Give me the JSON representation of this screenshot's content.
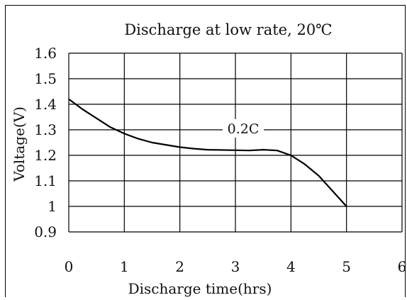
{
  "chart_data": {
    "type": "line",
    "title": "Discharge at low rate, 20℃",
    "xlabel": "Discharge time(hrs)",
    "ylabel": "Voltage(V)",
    "xlim": [
      0,
      6
    ],
    "ylim": [
      0.9,
      1.6
    ],
    "x_ticks": [
      "0",
      "1",
      "2",
      "3",
      "4",
      "5",
      "6"
    ],
    "y_ticks": [
      "1.6",
      "1.5",
      "1.4",
      "1.3",
      "1.2",
      "1.1",
      "1",
      "0.9"
    ],
    "grid": true,
    "annotations": [
      {
        "text": "0.2C"
      }
    ],
    "series": [
      {
        "x": [
          0,
          0.25,
          0.5,
          0.75,
          1.0,
          1.25,
          1.5,
          2.0,
          2.25,
          2.5,
          3.0,
          3.25,
          3.5,
          3.75,
          4.0,
          4.25,
          4.5,
          5.0
        ],
        "y": [
          1.42,
          1.38,
          1.345,
          1.31,
          1.285,
          1.265,
          1.25,
          1.232,
          1.226,
          1.222,
          1.22,
          1.219,
          1.222,
          1.219,
          1.2,
          1.165,
          1.12,
          1.0
        ]
      }
    ]
  }
}
